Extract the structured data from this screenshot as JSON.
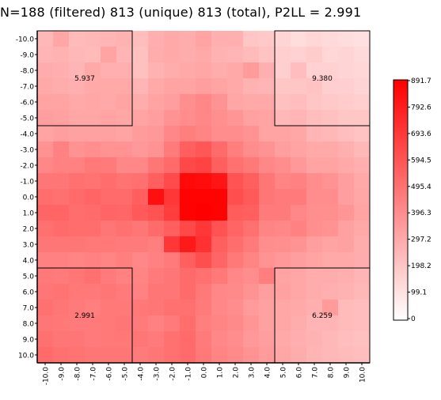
{
  "chart_data": {
    "type": "heatmap",
    "title": "N=188 (filtered) 813 (unique) 813 (total), P2LL = 2.991",
    "xlabel": "",
    "ylabel": "",
    "x_ticks": [
      "-10.0",
      "-9.0",
      "-8.0",
      "-7.0",
      "-6.0",
      "-5.0",
      "-4.0",
      "-3.0",
      "-2.0",
      "-1.0",
      "0.0",
      "1.0",
      "2.0",
      "3.0",
      "4.0",
      "5.0",
      "6.0",
      "7.0",
      "8.0",
      "9.0",
      "10.0"
    ],
    "y_ticks": [
      "-10.0",
      "-9.0",
      "-8.0",
      "-7.0",
      "-6.0",
      "-5.0",
      "-4.0",
      "-3.0",
      "-2.0",
      "-1.0",
      "0.0",
      "1.0",
      "2.0",
      "3.0",
      "4.0",
      "5.0",
      "6.0",
      "7.0",
      "8.0",
      "9.0",
      "10.0"
    ],
    "colorbar_ticks": [
      "891.7",
      "792.6",
      "693.6",
      "594.5",
      "495.4",
      "396.3",
      "297.2",
      "198.2",
      "99.1",
      "0"
    ],
    "colorbar_range": [
      0,
      891.7
    ],
    "colorscale": [
      "#ffffff",
      "#ff0000"
    ],
    "values": [
      [
        250,
        310,
        240,
        250,
        260,
        270,
        230,
        280,
        300,
        290,
        320,
        280,
        280,
        200,
        190,
        150,
        120,
        140,
        130,
        120,
        110
      ],
      [
        260,
        270,
        250,
        240,
        320,
        260,
        220,
        290,
        300,
        290,
        300,
        270,
        260,
        240,
        210,
        170,
        160,
        180,
        140,
        150,
        130
      ],
      [
        290,
        280,
        260,
        300,
        280,
        280,
        220,
        270,
        290,
        300,
        310,
        290,
        300,
        350,
        280,
        170,
        230,
        160,
        160,
        150,
        140
      ],
      [
        300,
        290,
        280,
        300,
        300,
        300,
        260,
        300,
        320,
        320,
        340,
        320,
        300,
        270,
        260,
        200,
        200,
        210,
        170,
        170,
        150
      ],
      [
        320,
        320,
        300,
        310,
        300,
        320,
        290,
        320,
        340,
        390,
        420,
        380,
        310,
        300,
        300,
        220,
        230,
        200,
        190,
        180,
        170
      ],
      [
        340,
        330,
        310,
        310,
        320,
        310,
        320,
        340,
        380,
        400,
        420,
        390,
        370,
        330,
        320,
        250,
        260,
        230,
        220,
        200,
        200
      ],
      [
        320,
        340,
        330,
        330,
        330,
        320,
        350,
        360,
        420,
        450,
        430,
        400,
        400,
        380,
        320,
        320,
        310,
        260,
        250,
        230,
        210
      ],
      [
        380,
        440,
        380,
        390,
        380,
        380,
        360,
        380,
        460,
        560,
        590,
        520,
        450,
        400,
        380,
        340,
        320,
        300,
        300,
        280,
        250
      ],
      [
        420,
        440,
        440,
        470,
        460,
        420,
        420,
        480,
        520,
        640,
        660,
        560,
        500,
        470,
        420,
        400,
        360,
        320,
        320,
        300,
        280
      ],
      [
        480,
        480,
        500,
        490,
        510,
        490,
        500,
        560,
        630,
        860,
        850,
        820,
        600,
        560,
        480,
        430,
        440,
        400,
        380,
        340,
        300
      ],
      [
        510,
        500,
        520,
        540,
        520,
        520,
        560,
        840,
        700,
        880,
        880,
        880,
        620,
        580,
        480,
        460,
        460,
        400,
        400,
        340,
        310
      ],
      [
        540,
        540,
        510,
        520,
        540,
        530,
        580,
        600,
        680,
        880,
        891.7,
        880,
        570,
        560,
        460,
        460,
        420,
        390,
        390,
        370,
        320
      ],
      [
        500,
        520,
        510,
        510,
        480,
        500,
        480,
        520,
        560,
        640,
        700,
        600,
        540,
        500,
        430,
        420,
        440,
        390,
        380,
        330,
        300
      ],
      [
        480,
        480,
        480,
        470,
        470,
        460,
        460,
        450,
        700,
        800,
        720,
        560,
        510,
        460,
        400,
        390,
        380,
        340,
        320,
        330,
        290
      ],
      [
        440,
        440,
        430,
        440,
        430,
        450,
        420,
        440,
        460,
        560,
        620,
        540,
        470,
        430,
        380,
        360,
        340,
        320,
        300,
        300,
        290
      ],
      [
        470,
        460,
        480,
        500,
        460,
        440,
        430,
        460,
        480,
        520,
        500,
        470,
        420,
        400,
        450,
        320,
        310,
        290,
        290,
        280,
        260
      ],
      [
        480,
        490,
        470,
        470,
        480,
        460,
        440,
        480,
        480,
        520,
        470,
        420,
        410,
        380,
        340,
        330,
        310,
        290,
        280,
        270,
        250
      ],
      [
        500,
        480,
        460,
        450,
        470,
        470,
        470,
        480,
        500,
        500,
        460,
        420,
        400,
        350,
        330,
        310,
        300,
        280,
        350,
        240,
        230
      ],
      [
        480,
        470,
        460,
        460,
        470,
        480,
        460,
        440,
        460,
        510,
        450,
        430,
        410,
        370,
        330,
        310,
        290,
        260,
        260,
        240,
        230
      ],
      [
        500,
        480,
        480,
        460,
        470,
        470,
        480,
        460,
        500,
        520,
        460,
        420,
        400,
        360,
        340,
        300,
        280,
        270,
        250,
        230,
        220
      ],
      [
        520,
        500,
        490,
        480,
        480,
        480,
        460,
        480,
        500,
        520,
        470,
        430,
        410,
        380,
        350,
        310,
        290,
        260,
        250,
        240,
        230
      ]
    ],
    "annotations": [
      {
        "text": "5.937",
        "x": -7.5,
        "y": -7.5
      },
      {
        "text": "9.380",
        "x": 7.5,
        "y": -7.5
      },
      {
        "text": "2.991",
        "x": -7.5,
        "y": 7.5
      },
      {
        "text": "6.259",
        "x": 7.5,
        "y": 7.5
      }
    ],
    "grid": false,
    "legend": "right (colorbar)"
  }
}
